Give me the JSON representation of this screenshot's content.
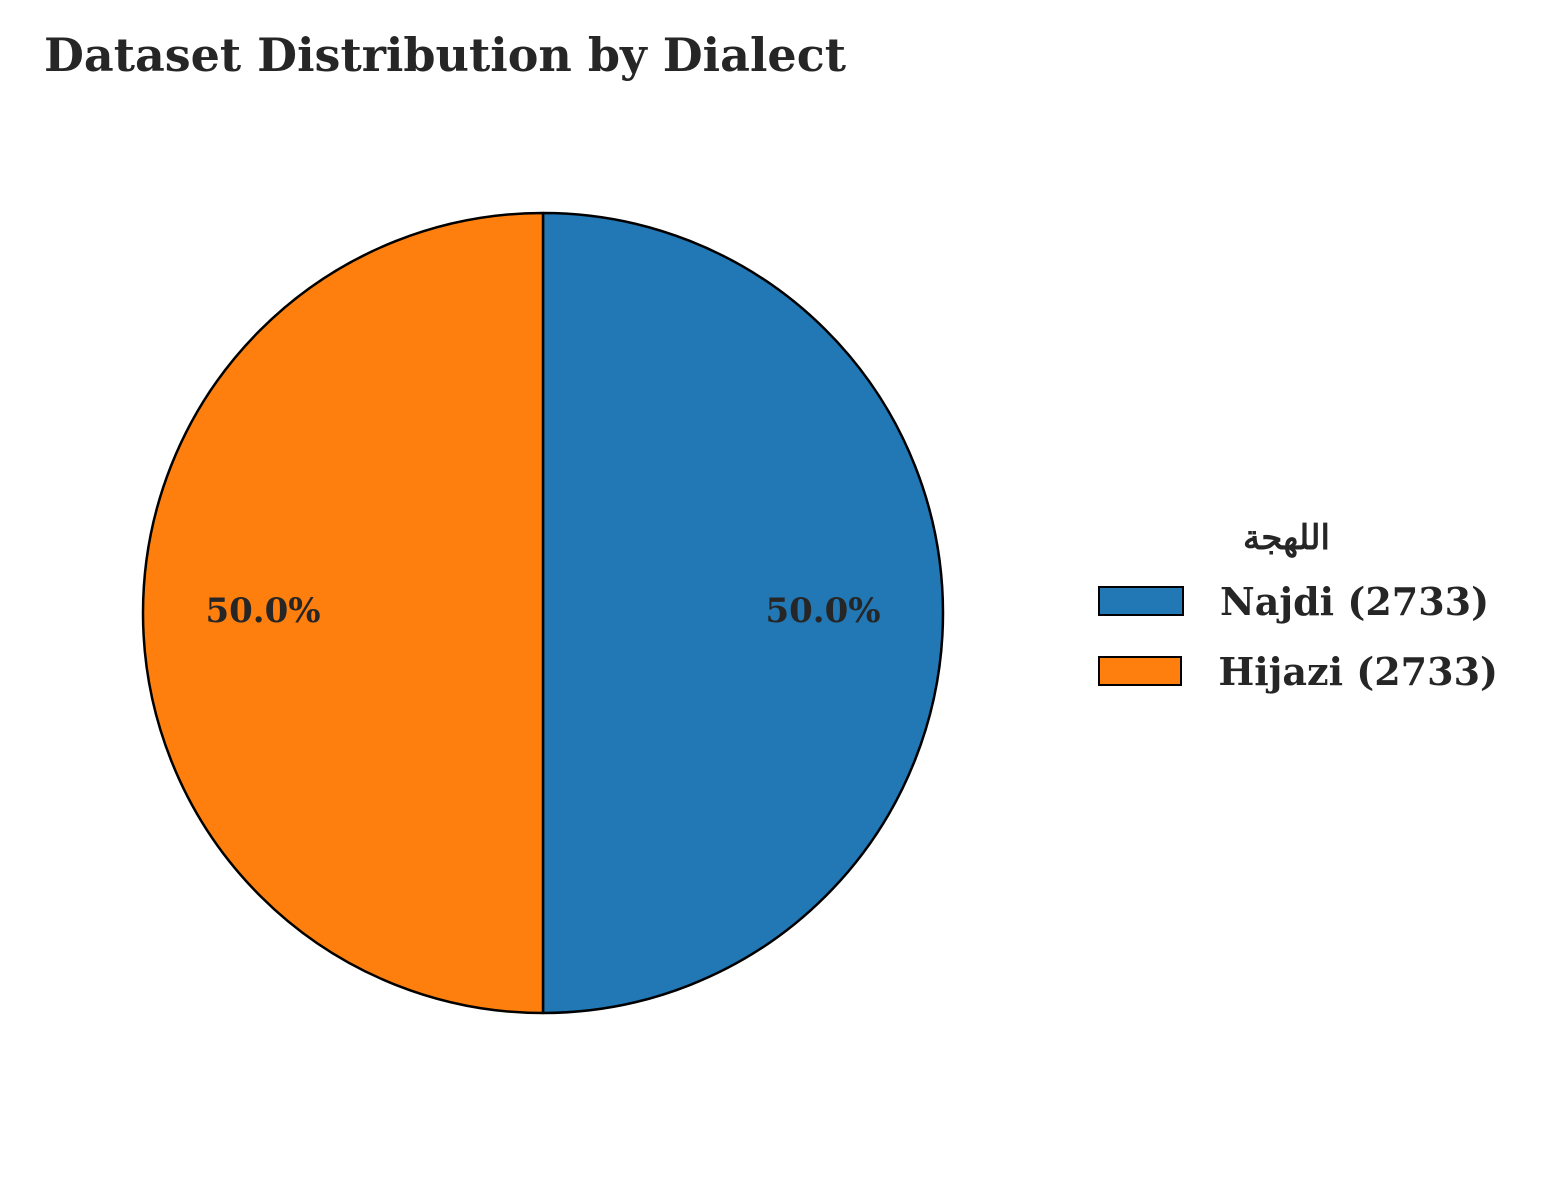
{
  "chart_data": {
    "type": "pie",
    "title": "Dataset Distribution by Dialect",
    "legend_title": "اللهجة",
    "legend_position": "right",
    "slices": [
      {
        "label": "Najdi (2733)",
        "value": 2733,
        "percent_label": "50.0%",
        "color": "#2178b4"
      },
      {
        "label": "Hijazi (2733)",
        "value": 2733,
        "percent_label": "50.0%",
        "color": "#fe7f0e"
      }
    ]
  }
}
